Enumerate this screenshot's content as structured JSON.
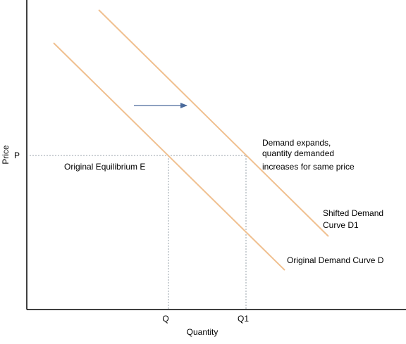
{
  "axes": {
    "y_label": "Price",
    "x_label": "Quantity",
    "price_tick": "P",
    "quantity_tick_original": "Q",
    "quantity_tick_shifted": "Q1"
  },
  "curves": {
    "original": {
      "label": "Original Demand Curve D",
      "color": "#f0c090"
    },
    "shifted": {
      "label_line1": "Shifted Demand",
      "label_line2": "Curve D1",
      "color": "#f0c090"
    }
  },
  "annotations": {
    "equilibrium": "Original Equilibrium E",
    "shift_line1": "Demand expands,",
    "shift_line2": "quantity demanded",
    "shift_line3": "increases for same price"
  },
  "colors": {
    "axis": "#000000",
    "guide": "#9aa3ab",
    "arrow": "#4a6a9c"
  },
  "icons": {
    "shift_arrow": "right-arrow-icon"
  }
}
